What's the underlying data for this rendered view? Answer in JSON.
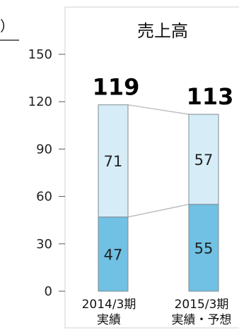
{
  "chart_data": {
    "type": "bar",
    "stacked": true,
    "title": "売上高",
    "unit_fragment": "）",
    "categories": [
      [
        "2014/3期",
        "実績"
      ],
      [
        "2015/3期",
        "実績・予想"
      ]
    ],
    "series": [
      {
        "values": [
          47,
          55
        ],
        "color": "#70c1e3"
      },
      {
        "values": [
          71,
          57
        ],
        "color": "#d6edf8"
      }
    ],
    "totals": [
      119,
      113
    ],
    "ylim": [
      0,
      150
    ],
    "yticks": [
      0,
      30,
      60,
      90,
      120,
      150
    ],
    "connector_color": "#bfbfbf",
    "frame_color": "#d9d9d9"
  }
}
